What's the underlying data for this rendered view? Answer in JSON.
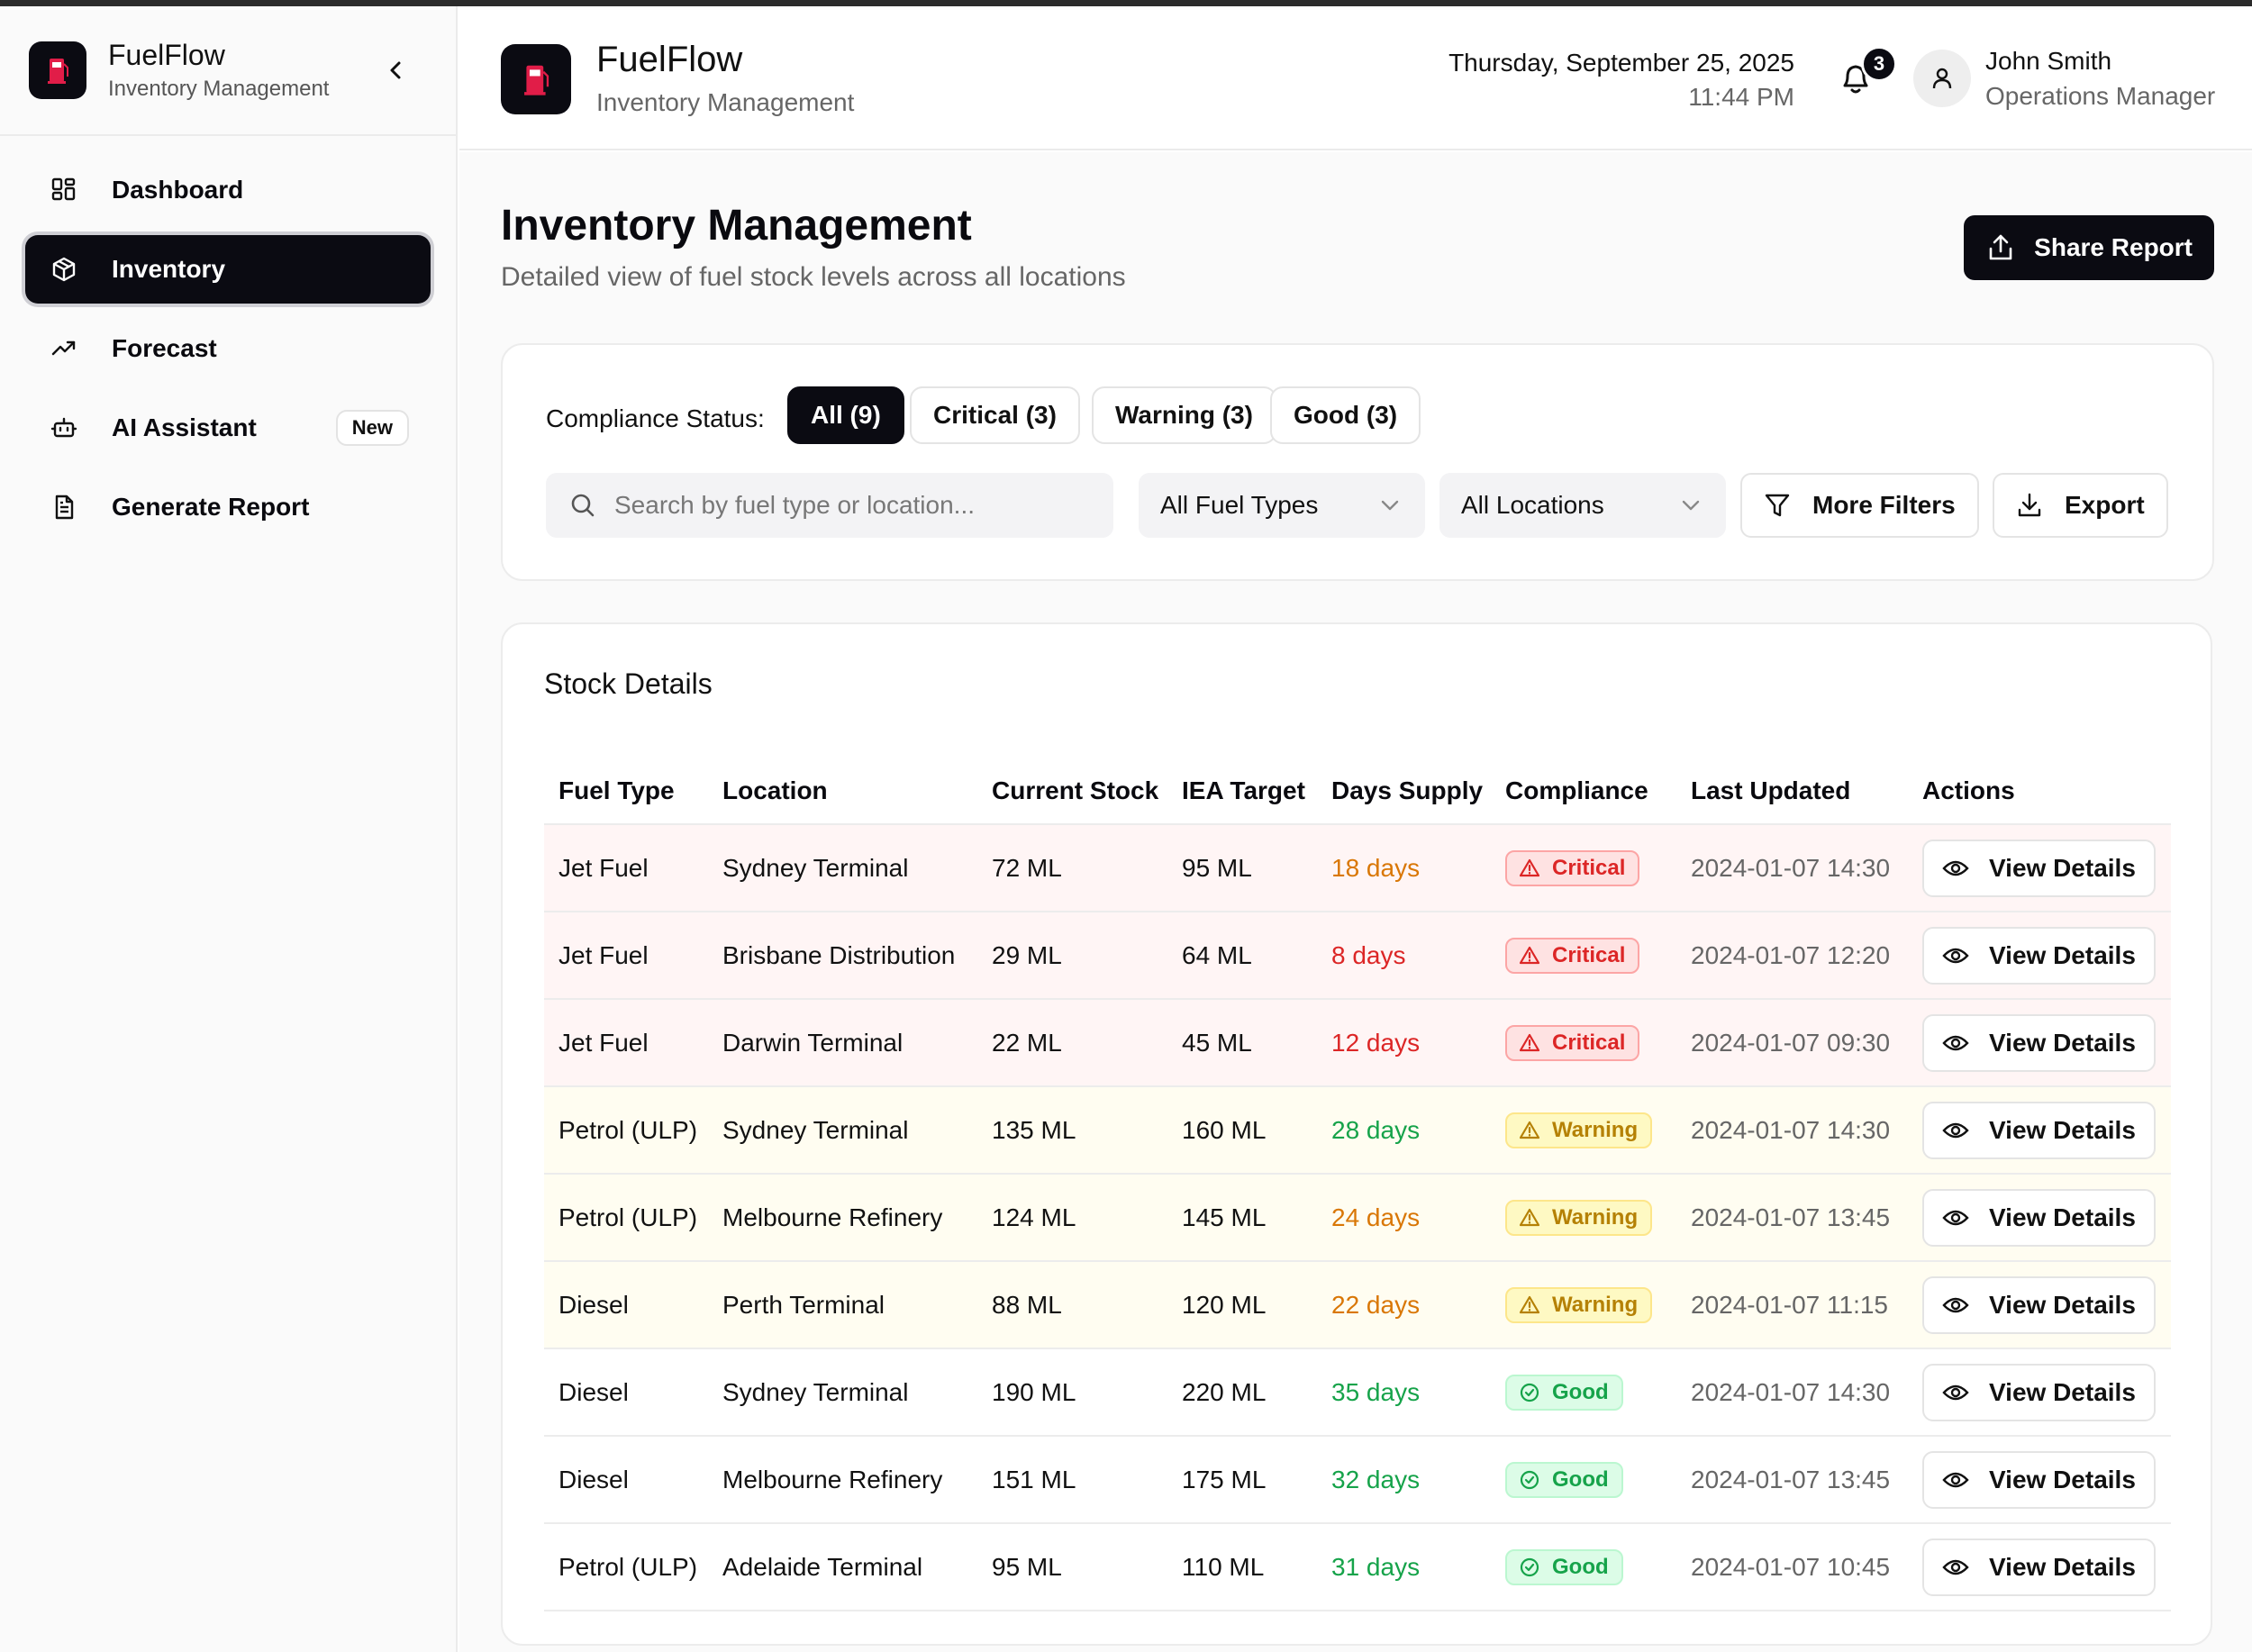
{
  "app": {
    "name": "FuelFlow",
    "subtitle": "Inventory Management"
  },
  "sidebar": {
    "items": [
      {
        "label": "Dashboard",
        "icon": "grid-icon"
      },
      {
        "label": "Inventory",
        "icon": "box-icon",
        "active": true
      },
      {
        "label": "Forecast",
        "icon": "trending-up-icon"
      },
      {
        "label": "AI Assistant",
        "icon": "bot-icon",
        "badge": "New"
      },
      {
        "label": "Generate Report",
        "icon": "file-text-icon"
      }
    ]
  },
  "header": {
    "date": "Thursday, September 25, 2025",
    "time": "11:44 PM",
    "notification_count": "3",
    "user_name": "John Smith",
    "user_role": "Operations Manager"
  },
  "page": {
    "title": "Inventory Management",
    "subtitle": "Detailed view of fuel stock levels across all locations",
    "share_label": "Share Report"
  },
  "filters": {
    "compliance_label": "Compliance Status:",
    "chips": [
      "All (9)",
      "Critical (3)",
      "Warning (3)",
      "Good (3)"
    ],
    "search_placeholder": "Search by fuel type or location...",
    "fuel_type_selected": "All Fuel Types",
    "location_selected": "All Locations",
    "more_filters_label": "More Filters",
    "export_label": "Export"
  },
  "stock": {
    "title": "Stock Details",
    "columns": [
      "Fuel Type",
      "Location",
      "Current Stock",
      "IEA Target",
      "Days Supply",
      "Compliance",
      "Last Updated",
      "Actions"
    ],
    "action_label": "View Details",
    "rows": [
      {
        "fuel": "Jet Fuel",
        "location": "Sydney Terminal",
        "stock": "72 ML",
        "target": "95 ML",
        "days": "18 days",
        "days_color": "amber",
        "status": "Critical",
        "updated": "2024-01-07 14:30"
      },
      {
        "fuel": "Jet Fuel",
        "location": "Brisbane Distribution",
        "stock": "29 ML",
        "target": "64 ML",
        "days": "8 days",
        "days_color": "red",
        "status": "Critical",
        "updated": "2024-01-07 12:20"
      },
      {
        "fuel": "Jet Fuel",
        "location": "Darwin Terminal",
        "stock": "22 ML",
        "target": "45 ML",
        "days": "12 days",
        "days_color": "red",
        "status": "Critical",
        "updated": "2024-01-07 09:30"
      },
      {
        "fuel": "Petrol (ULP)",
        "location": "Sydney Terminal",
        "stock": "135 ML",
        "target": "160 ML",
        "days": "28 days",
        "days_color": "green",
        "status": "Warning",
        "updated": "2024-01-07 14:30"
      },
      {
        "fuel": "Petrol (ULP)",
        "location": "Melbourne Refinery",
        "stock": "124 ML",
        "target": "145 ML",
        "days": "24 days",
        "days_color": "amber",
        "status": "Warning",
        "updated": "2024-01-07 13:45"
      },
      {
        "fuel": "Diesel",
        "location": "Perth Terminal",
        "stock": "88 ML",
        "target": "120 ML",
        "days": "22 days",
        "days_color": "amber",
        "status": "Warning",
        "updated": "2024-01-07 11:15"
      },
      {
        "fuel": "Diesel",
        "location": "Sydney Terminal",
        "stock": "190 ML",
        "target": "220 ML",
        "days": "35 days",
        "days_color": "green",
        "status": "Good",
        "updated": "2024-01-07 14:30"
      },
      {
        "fuel": "Diesel",
        "location": "Melbourne Refinery",
        "stock": "151 ML",
        "target": "175 ML",
        "days": "32 days",
        "days_color": "green",
        "status": "Good",
        "updated": "2024-01-07 13:45"
      },
      {
        "fuel": "Petrol (ULP)",
        "location": "Adelaide Terminal",
        "stock": "95 ML",
        "target": "110 ML",
        "days": "31 days",
        "days_color": "green",
        "status": "Good",
        "updated": "2024-01-07 10:45"
      }
    ]
  },
  "colors": {
    "primary": "#0b0b12",
    "critical": "#dc2626",
    "warning": "#d97706",
    "good": "#16a34a",
    "logo_accent": "#e11d48"
  }
}
